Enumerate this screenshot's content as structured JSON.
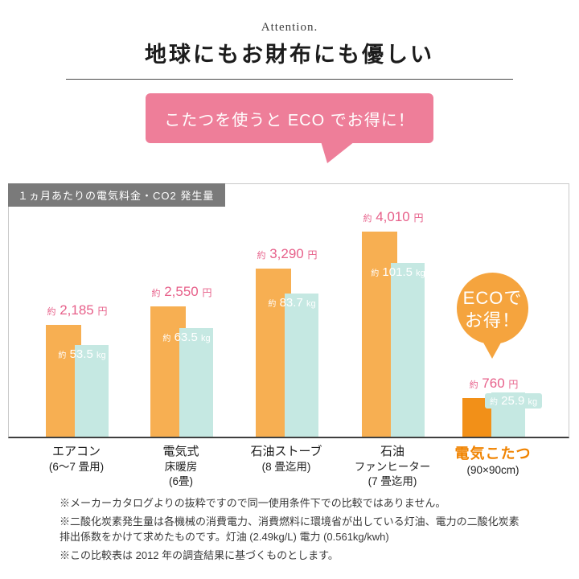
{
  "header": {
    "attention": "Attention.",
    "title": "地球にもお財布にも優しい",
    "bubble": "こたつを使うと ECO でお得に！"
  },
  "eco_badge": {
    "line1": "ECOで",
    "line2": "お得！"
  },
  "chart_data": {
    "type": "bar",
    "title": "１ヵ月あたりの電気料金・CO2 発生量",
    "categories": [
      {
        "lines": [
          "エアコン",
          "(6〜7 畳用)"
        ],
        "highlight": false
      },
      {
        "lines": [
          "電気式",
          "床暖房",
          "(6畳)"
        ],
        "highlight": false
      },
      {
        "lines": [
          "石油ストーブ",
          "(8 畳迄用)"
        ],
        "highlight": false
      },
      {
        "lines": [
          "石油",
          "ファンヒーター",
          "(7 畳迄用)"
        ],
        "highlight": false
      },
      {
        "lines": [
          "電気こたつ",
          "(90×90cm)"
        ],
        "highlight": true
      }
    ],
    "series": [
      {
        "name": "電気料金",
        "prefix": "約",
        "unit": "円",
        "values": [
          2185,
          2550,
          3290,
          4010,
          760
        ],
        "labels": [
          "2,185",
          "2,550",
          "3,290",
          "4,010",
          "760"
        ],
        "color": "#f7af52",
        "highlight_color": "#f29018",
        "label_color": "#e7608a"
      },
      {
        "name": "CO2発生量",
        "prefix": "約",
        "unit": "kg",
        "values": [
          53.5,
          63.5,
          83.7,
          101.5,
          25.9
        ],
        "labels": [
          "53.5",
          "63.5",
          "83.7",
          "101.5",
          "25.9"
        ],
        "color": "#c5e8e2",
        "label_color": "#ffffff"
      }
    ],
    "ylim_price": [
      0,
      4010
    ],
    "ylim_co2": [
      0,
      120
    ],
    "grid": false,
    "legend": "none"
  },
  "footnotes": [
    "※メーカーカタログよりの抜粋ですので同一使用条件下での比較ではありません。",
    "※二酸化炭素発生量は各機械の消費電力、消費燃料に環境省が出している灯油、電力の二酸化炭素排出係数をかけて求めたものです。灯油 (2.49kg/L) 電力 (0.561kg/kwh)",
    "※この比較表は 2012 年の調査結果に基づくものとします。"
  ],
  "colors": {
    "bar_orange": "#f7af52",
    "bar_orange_highlight": "#f29018",
    "bar_teal": "#c5e8e2",
    "price_text": "#e7608a",
    "co2_text": "#ffffff",
    "bubble_pink": "#ee7e99",
    "badge_orange": "#f5a43e",
    "category_highlight": "#f08300",
    "chart_header_bg": "#7a7a7a"
  }
}
